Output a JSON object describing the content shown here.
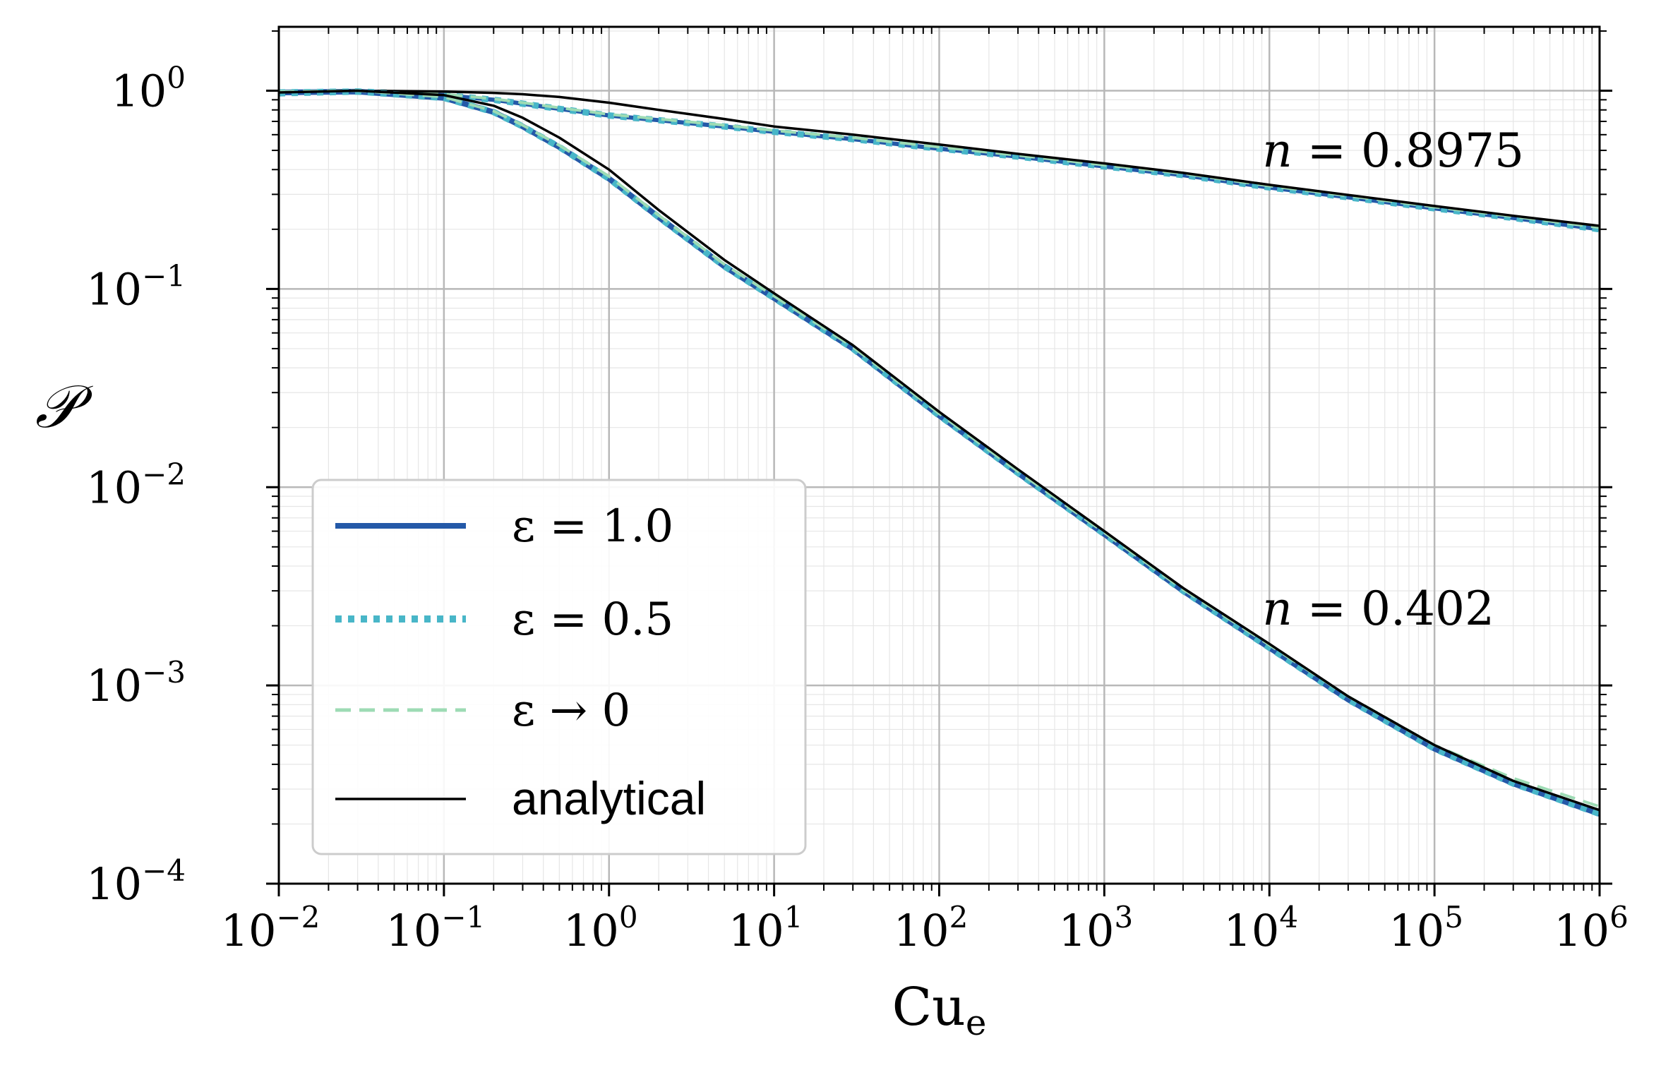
{
  "chart_data": {
    "type": "line",
    "xscale": "log",
    "yscale": "log",
    "xlim": [
      0.01,
      1000000
    ],
    "ylim": [
      0.0001,
      2.1
    ],
    "grid": true,
    "legend_position": "lower-left",
    "xlabel": {
      "base": "Cu",
      "sub": "e"
    },
    "ylabel": "𝒫",
    "x_ticks": [
      {
        "value": 0.01,
        "base": "10",
        "exp": "−2"
      },
      {
        "value": 0.1,
        "base": "10",
        "exp": "−1"
      },
      {
        "value": 1,
        "base": "10",
        "exp": "0"
      },
      {
        "value": 10,
        "base": "10",
        "exp": "1"
      },
      {
        "value": 100,
        "base": "10",
        "exp": "2"
      },
      {
        "value": 1000,
        "base": "10",
        "exp": "3"
      },
      {
        "value": 10000,
        "base": "10",
        "exp": "4"
      },
      {
        "value": 100000,
        "base": "10",
        "exp": "5"
      },
      {
        "value": 1000000,
        "base": "10",
        "exp": "6"
      }
    ],
    "y_ticks": [
      {
        "value": 1,
        "base": "10",
        "exp": "0"
      },
      {
        "value": 0.1,
        "base": "10",
        "exp": "−1"
      },
      {
        "value": 0.01,
        "base": "10",
        "exp": "−2"
      },
      {
        "value": 0.001,
        "base": "10",
        "exp": "−3"
      },
      {
        "value": 0.0001,
        "base": "10",
        "exp": "−4"
      }
    ],
    "x": [
      0.01,
      0.03,
      0.1,
      0.2,
      0.3,
      0.5,
      1,
      2,
      5,
      10,
      30,
      100,
      300,
      1000,
      3000,
      10000,
      30000,
      100000,
      300000,
      1000000
    ],
    "series": [
      {
        "name": "ε = 1.0",
        "group": "n = 0.8975",
        "color": "#2459a8",
        "style": "solid",
        "width": 6,
        "values": [
          0.97,
          0.99,
          0.95,
          0.9,
          0.86,
          0.81,
          0.75,
          0.71,
          0.66,
          0.62,
          0.57,
          0.51,
          0.465,
          0.415,
          0.375,
          0.325,
          0.29,
          0.255,
          0.228,
          0.2
        ]
      },
      {
        "name": "ε = 0.5",
        "group": "n = 0.8975",
        "color": "#48b6c8",
        "style": "dotted",
        "width": 9,
        "values": [
          0.97,
          0.99,
          0.95,
          0.9,
          0.86,
          0.81,
          0.75,
          0.71,
          0.66,
          0.62,
          0.57,
          0.51,
          0.465,
          0.415,
          0.375,
          0.325,
          0.29,
          0.255,
          0.228,
          0.2
        ]
      },
      {
        "name": "ε → 0",
        "group": "n = 0.8975",
        "color": "#9ddbb4",
        "style": "dashed",
        "width": 4,
        "values": [
          0.99,
          1.0,
          0.96,
          0.91,
          0.87,
          0.82,
          0.76,
          0.72,
          0.67,
          0.63,
          0.58,
          0.52,
          0.472,
          0.422,
          0.382,
          0.331,
          0.295,
          0.259,
          0.232,
          0.204
        ]
      },
      {
        "name": "analytical",
        "group": "n = 0.8975",
        "color": "#000000",
        "style": "solid",
        "width": 3.5,
        "values": [
          0.98,
          1.0,
          0.99,
          0.975,
          0.96,
          0.93,
          0.87,
          0.8,
          0.72,
          0.66,
          0.6,
          0.535,
          0.48,
          0.43,
          0.385,
          0.335,
          0.298,
          0.262,
          0.234,
          0.208
        ]
      },
      {
        "name": "ε = 1.0",
        "group": "n = 0.402",
        "color": "#2459a8",
        "style": "solid",
        "width": 8,
        "values": [
          0.98,
          0.99,
          0.92,
          0.78,
          0.66,
          0.52,
          0.36,
          0.23,
          0.13,
          0.09,
          0.05,
          0.023,
          0.0118,
          0.0058,
          0.003,
          0.00155,
          0.00085,
          0.00048,
          0.00032,
          0.000225
        ]
      },
      {
        "name": "ε = 0.5",
        "group": "n = 0.402",
        "color": "#48b6c8",
        "style": "dotted",
        "width": 9,
        "values": [
          0.98,
          0.99,
          0.92,
          0.78,
          0.66,
          0.52,
          0.36,
          0.23,
          0.13,
          0.09,
          0.05,
          0.023,
          0.0118,
          0.0058,
          0.003,
          0.00155,
          0.00085,
          0.00048,
          0.00032,
          0.000225
        ]
      },
      {
        "name": "ε → 0",
        "group": "n = 0.402",
        "color": "#9ddbb4",
        "style": "dashed",
        "width": 4,
        "values": [
          0.99,
          1.0,
          0.93,
          0.79,
          0.67,
          0.53,
          0.37,
          0.235,
          0.133,
          0.092,
          0.051,
          0.0235,
          0.012,
          0.0059,
          0.00305,
          0.0016,
          0.00088,
          0.0005,
          0.00034,
          0.000245
        ]
      },
      {
        "name": "analytical",
        "group": "n = 0.402",
        "color": "#000000",
        "style": "solid",
        "width": 3.5,
        "values": [
          0.98,
          1.0,
          0.95,
          0.84,
          0.73,
          0.58,
          0.4,
          0.25,
          0.14,
          0.095,
          0.052,
          0.024,
          0.0123,
          0.006,
          0.0031,
          0.00162,
          0.00088,
          0.0005,
          0.00033,
          0.000235
        ]
      }
    ],
    "annotations": [
      {
        "n": "n",
        "rest": " = 0.8975",
        "x": 10000,
        "y": 0.45
      },
      {
        "n": "n",
        "rest": " = 0.402",
        "x": 10000,
        "y": 0.0022
      }
    ],
    "legend": [
      {
        "label": "ε = 1.0",
        "color": "#2459a8",
        "style": "solid",
        "font": "serif"
      },
      {
        "label": "ε = 0.5",
        "color": "#48b6c8",
        "style": "dotted",
        "font": "serif"
      },
      {
        "label": "ε → 0",
        "color": "#9ddbb4",
        "style": "dashed",
        "font": "serif"
      },
      {
        "label": "analytical",
        "color": "#000000",
        "style": "solid",
        "font": "sans"
      }
    ]
  }
}
